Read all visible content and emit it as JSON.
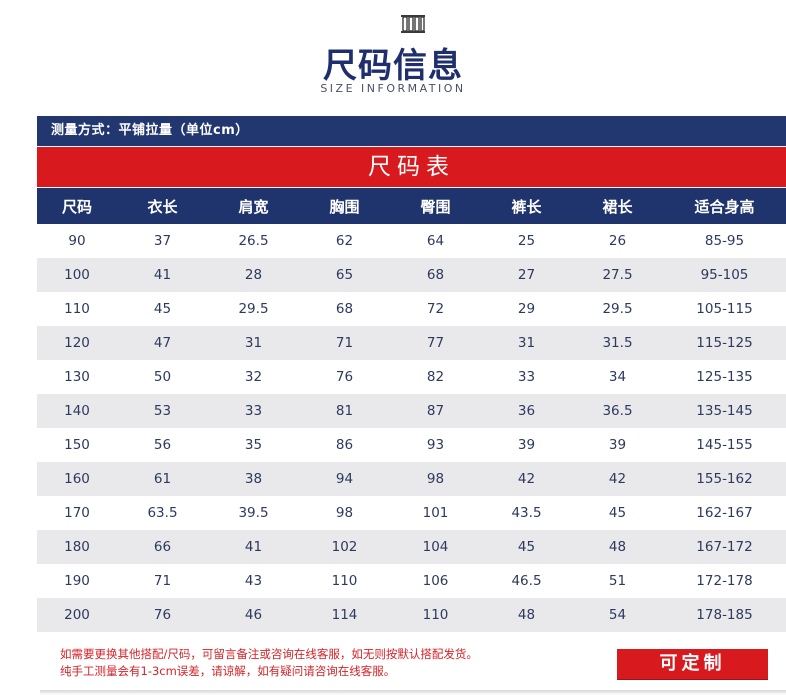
{
  "header": {
    "logo_icon": "clothes-rack-icon",
    "title": "尺码信息",
    "subtitle": "SIZE INFORMATION"
  },
  "measure_method": "测量方式：平铺拉量（单位cm）",
  "table_title": "尺码表",
  "columns": [
    "尺码",
    "衣长",
    "肩宽",
    "胸围",
    "臀围",
    "裤长",
    "裙长",
    "适合身高"
  ],
  "rows": [
    [
      "90",
      "37",
      "26.5",
      "62",
      "64",
      "25",
      "26",
      "85-95"
    ],
    [
      "100",
      "41",
      "28",
      "65",
      "68",
      "27",
      "27.5",
      "95-105"
    ],
    [
      "110",
      "45",
      "29.5",
      "68",
      "72",
      "29",
      "29.5",
      "105-115"
    ],
    [
      "120",
      "47",
      "31",
      "71",
      "77",
      "31",
      "31.5",
      "115-125"
    ],
    [
      "130",
      "50",
      "32",
      "76",
      "82",
      "33",
      "34",
      "125-135"
    ],
    [
      "140",
      "53",
      "33",
      "81",
      "87",
      "36",
      "36.5",
      "135-145"
    ],
    [
      "150",
      "56",
      "35",
      "86",
      "93",
      "39",
      "39",
      "145-155"
    ],
    [
      "160",
      "61",
      "38",
      "94",
      "98",
      "42",
      "42",
      "155-162"
    ],
    [
      "170",
      "63.5",
      "39.5",
      "98",
      "101",
      "43.5",
      "45",
      "162-167"
    ],
    [
      "180",
      "66",
      "41",
      "102",
      "104",
      "45",
      "48",
      "167-172"
    ],
    [
      "190",
      "71",
      "43",
      "110",
      "106",
      "46.5",
      "51",
      "172-178"
    ],
    [
      "200",
      "76",
      "46",
      "114",
      "110",
      "48",
      "54",
      "178-185"
    ]
  ],
  "notice": {
    "line1": "如需要更换其他搭配/尺码，可留言备注或咨询在线客服，如无则按默认搭配发货。",
    "line2": "纯手工测量会有1-3cm误差，请谅解，如有疑问请咨询在线客服。"
  },
  "custom_button_label": "可定制",
  "colors": {
    "navy": "#22376f",
    "red": "#d81a1f",
    "row_shade": "#e9e9eb"
  }
}
